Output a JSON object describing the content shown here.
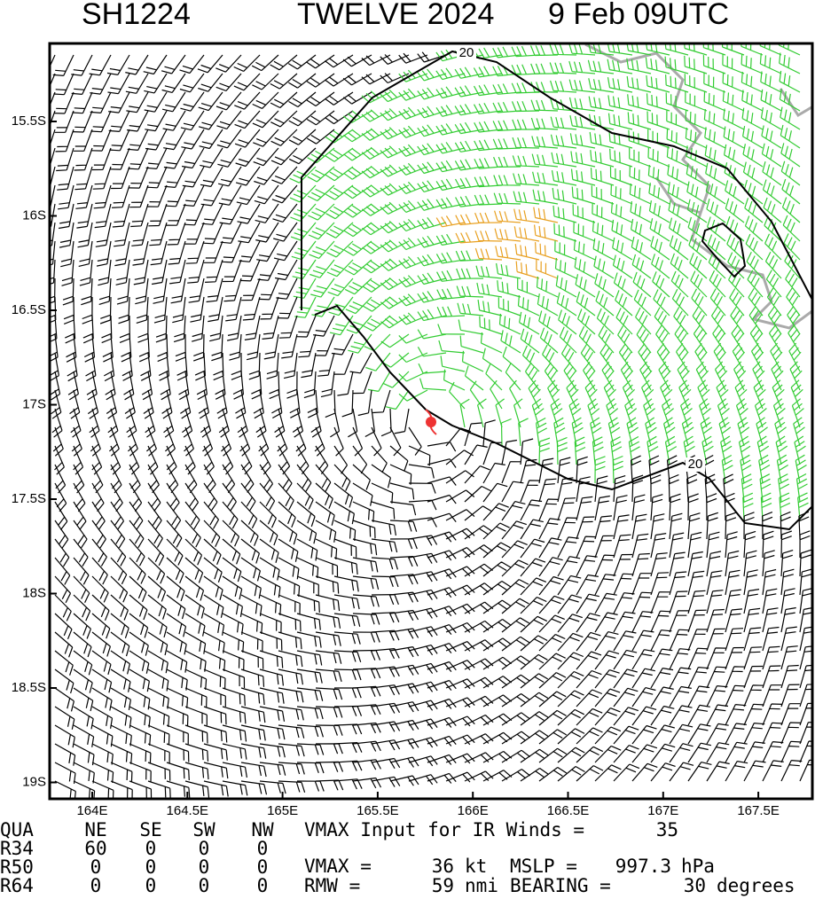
{
  "title": {
    "id": "SH1224",
    "name": "TWELVE 2024",
    "time": "9 Feb 09UTC"
  },
  "map": {
    "lat_labels": [
      "15.5S",
      "16S",
      "16.5S",
      "17S",
      "17.5S",
      "18S",
      "18.5S",
      "19S"
    ],
    "lon_labels": [
      "164E",
      "164.5E",
      "165E",
      "165.5E",
      "166E",
      "166.5E",
      "167E",
      "167.5E"
    ],
    "contour_labels": [
      "20",
      "20"
    ]
  },
  "table": {
    "header": [
      "QUA",
      "NE",
      "SE",
      "SW",
      "NW"
    ],
    "rows": [
      [
        "R34",
        "60",
        "0",
        "0",
        "0"
      ],
      [
        "R50",
        "0",
        "0",
        "0",
        "0"
      ],
      [
        "R64",
        "0",
        "0",
        "0",
        "0"
      ]
    ]
  },
  "info": {
    "vmax_input_label": "VMAX Input for IR Winds =",
    "vmax_input": "35",
    "vmax_label": "VMAX =",
    "vmax": "36",
    "vmax_unit": "kt",
    "mslp_label": "MSLP =",
    "mslp": "997.3",
    "mslp_unit": "hPa",
    "rmw_label": "RMW =",
    "rmw": "59",
    "rmw_unit": "nmi",
    "bearing_label": "BEARING =",
    "bearing": "30",
    "bearing_unit": "degrees"
  }
}
